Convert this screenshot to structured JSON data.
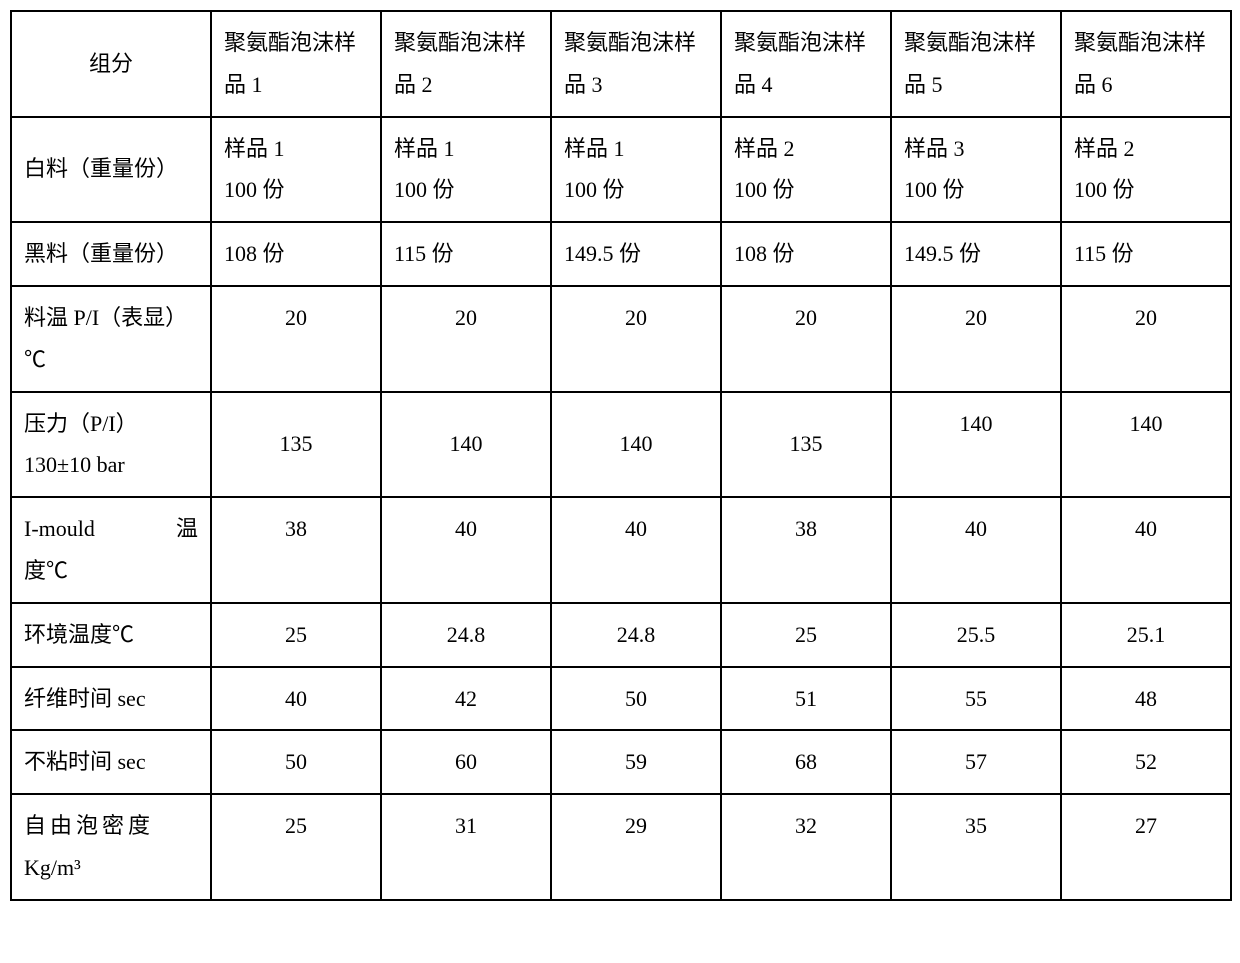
{
  "table": {
    "headers": {
      "label": "组分",
      "col1": "聚氨酯泡沫样品 1",
      "col2": "聚氨酯泡沫样品 2",
      "col3": "聚氨酯泡沫样品 3",
      "col4": "聚氨酯泡沫样品 4",
      "col5": "聚氨酯泡沫样品 5",
      "col6": "聚氨酯泡沫样品 6"
    },
    "rows": {
      "white_material": {
        "label": "白料（重量份）",
        "c1_line1": "样品 1",
        "c1_line2": "100 份",
        "c2_line1": "样品 1",
        "c2_line2": "100 份",
        "c3_line1": "样品 1",
        "c3_line2": "100 份",
        "c4_line1": "样品 2",
        "c4_line2": "100 份",
        "c5_line1": "样品 3",
        "c5_line2": "100 份",
        "c6_line1": "样品 2",
        "c6_line2": "100 份"
      },
      "black_material": {
        "label": "黑料（重量份）",
        "c1": "108 份",
        "c2": "115 份",
        "c3": "149.5 份",
        "c4": "108 份",
        "c5": "149.5 份",
        "c6": "115 份"
      },
      "material_temp": {
        "label": "料温 P/I（表显）℃",
        "c1": "20",
        "c2": "20",
        "c3": "20",
        "c4": "20",
        "c5": "20",
        "c6": "20"
      },
      "pressure": {
        "label": "压力（P/I）130±10 bar",
        "c1": "135",
        "c2": "140",
        "c3": "140",
        "c4": "135",
        "c5": "140",
        "c6": "140"
      },
      "imould_temp": {
        "label_line1": "I-mould    温",
        "label_line2": "度℃",
        "c1": "38",
        "c2": "40",
        "c3": "40",
        "c4": "38",
        "c5": "40",
        "c6": "40"
      },
      "env_temp": {
        "label": "环境温度℃",
        "c1": "25",
        "c2": "24.8",
        "c3": "24.8",
        "c4": "25",
        "c5": "25.5",
        "c6": "25.1"
      },
      "fiber_time": {
        "label": "纤维时间 sec",
        "c1": "40",
        "c2": "42",
        "c3": "50",
        "c4": "51",
        "c5": "55",
        "c6": "48"
      },
      "tack_free_time": {
        "label": "不粘时间 sec",
        "c1": "50",
        "c2": "60",
        "c3": "59",
        "c4": "68",
        "c5": "57",
        "c6": "52"
      },
      "free_foam_density": {
        "label_line1": "自由泡密度",
        "label_line2": "Kg/m³",
        "c1": "25",
        "c2": "31",
        "c3": "29",
        "c4": "32",
        "c5": "35",
        "c6": "27"
      }
    }
  }
}
